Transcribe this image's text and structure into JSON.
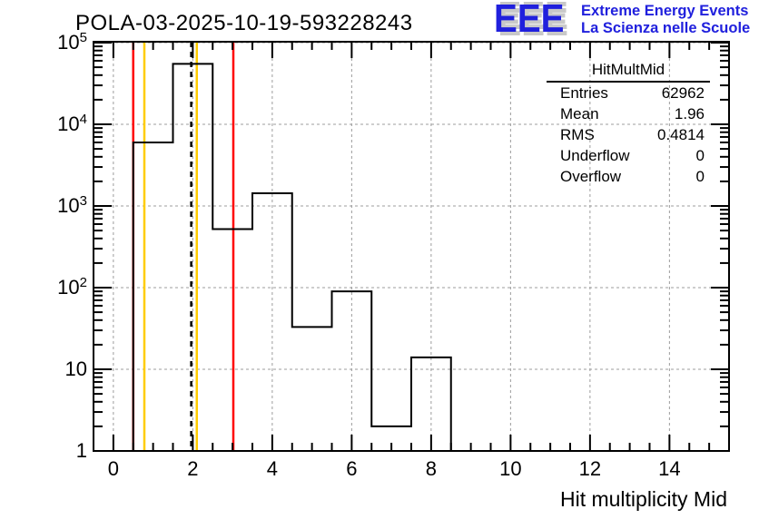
{
  "page": {
    "background": "#ffffff"
  },
  "logo": {
    "eee": "EEE",
    "line1": "Extreme Energy Events",
    "line2": "La Scienza nelle Scuole",
    "color": "#2020dd",
    "shadow_color": "#c8c8c8"
  },
  "stats": {
    "title": "HitMultMid",
    "rows": [
      {
        "label": "Entries",
        "value": "62962"
      },
      {
        "label": "Mean",
        "value": "1.96"
      },
      {
        "label": "RMS",
        "value": "0.4814"
      },
      {
        "label": "Underflow",
        "value": "0"
      },
      {
        "label": "Overflow",
        "value": "0"
      }
    ]
  },
  "chart_data": {
    "type": "bar",
    "subtype": "step-histogram",
    "title": "POLA-03-2025-10-19-593228243",
    "xlabel": "Hit multiplicity Mid",
    "ylabel": "",
    "xlim": [
      -0.5,
      15.5
    ],
    "y_scale": "log",
    "ylim": [
      1,
      103000
    ],
    "x_tick_labels": [
      0,
      2,
      4,
      6,
      8,
      10,
      12,
      14
    ],
    "x_minor_step": 0.5,
    "y_decade_exponents": [
      0,
      1,
      2,
      3,
      4,
      5
    ],
    "grid": {
      "show": true,
      "style": "dashed",
      "color": "#9c9c9c"
    },
    "categories": [
      1,
      2,
      3,
      4,
      5,
      6,
      7,
      8
    ],
    "values": [
      6000,
      55000,
      520,
      1430,
      33,
      90,
      2,
      14
    ],
    "bin_width": 1,
    "line_color": "#000000",
    "ref_lines": [
      {
        "x": 0.5,
        "color": "#ff0000",
        "style": "solid"
      },
      {
        "x": 0.78,
        "color": "#ffcc00",
        "style": "solid"
      },
      {
        "x": 1.96,
        "color": "#000000",
        "style": "dashed"
      },
      {
        "x": 2.1,
        "color": "#ffcc00",
        "style": "solid"
      },
      {
        "x": 3.02,
        "color": "#ff0000",
        "style": "solid"
      }
    ]
  }
}
